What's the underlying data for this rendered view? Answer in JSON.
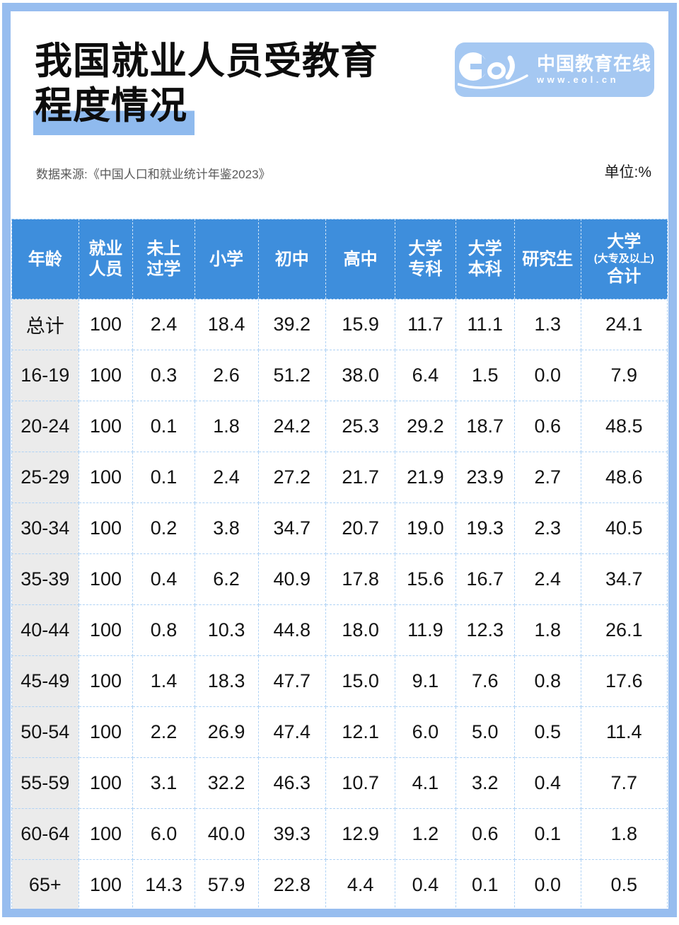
{
  "header": {
    "title_line1": "我国就业人员受教育",
    "title_line2": "程度情况",
    "source": "数据来源:《中国人口和就业统计年鉴2023》",
    "unit": "单位:%"
  },
  "logo": {
    "icon": "eol-logo",
    "name": "中国教育在线",
    "url": "www.eol.cn"
  },
  "colors": {
    "frame_blue": "#97BDEF",
    "logo_panel_blue": "#A5C8F2",
    "title_highlight_blue": "#8FBAEE",
    "table_header_blue": "#3E8EDC",
    "grid_dashed_blue": "#AFD2F5",
    "row_label_gray": "#EBEBEB"
  },
  "table": {
    "columns": [
      {
        "lines": [
          "年龄"
        ]
      },
      {
        "lines": [
          "就业",
          "人员"
        ]
      },
      {
        "lines": [
          "未上",
          "过学"
        ]
      },
      {
        "lines": [
          "小学"
        ]
      },
      {
        "lines": [
          "初中"
        ]
      },
      {
        "lines": [
          "高中"
        ]
      },
      {
        "lines": [
          "大学",
          "专科"
        ]
      },
      {
        "lines": [
          "大学",
          "本科"
        ]
      },
      {
        "lines": [
          "研究生"
        ]
      },
      {
        "lines": [
          "大学",
          "(大专及以上)",
          "合计"
        ]
      }
    ],
    "col_widths_pct": [
      10.2,
      8.3,
      9.4,
      9.7,
      10.3,
      10.6,
      9.2,
      9.0,
      10.1,
      13.2
    ],
    "rows": [
      {
        "label": "总计",
        "values": [
          "100",
          "2.4",
          "18.4",
          "39.2",
          "15.9",
          "11.7",
          "11.1",
          "1.3",
          "24.1"
        ]
      },
      {
        "label": "16-19",
        "values": [
          "100",
          "0.3",
          "2.6",
          "51.2",
          "38.0",
          "6.4",
          "1.5",
          "0.0",
          "7.9"
        ]
      },
      {
        "label": "20-24",
        "values": [
          "100",
          "0.1",
          "1.8",
          "24.2",
          "25.3",
          "29.2",
          "18.7",
          "0.6",
          "48.5"
        ]
      },
      {
        "label": "25-29",
        "values": [
          "100",
          "0.1",
          "2.4",
          "27.2",
          "21.7",
          "21.9",
          "23.9",
          "2.7",
          "48.6"
        ]
      },
      {
        "label": "30-34",
        "values": [
          "100",
          "0.2",
          "3.8",
          "34.7",
          "20.7",
          "19.0",
          "19.3",
          "2.3",
          "40.5"
        ]
      },
      {
        "label": "35-39",
        "values": [
          "100",
          "0.4",
          "6.2",
          "40.9",
          "17.8",
          "15.6",
          "16.7",
          "2.4",
          "34.7"
        ]
      },
      {
        "label": "40-44",
        "values": [
          "100",
          "0.8",
          "10.3",
          "44.8",
          "18.0",
          "11.9",
          "12.3",
          "1.8",
          "26.1"
        ]
      },
      {
        "label": "45-49",
        "values": [
          "100",
          "1.4",
          "18.3",
          "47.7",
          "15.0",
          "9.1",
          "7.6",
          "0.8",
          "17.6"
        ]
      },
      {
        "label": "50-54",
        "values": [
          "100",
          "2.2",
          "26.9",
          "47.4",
          "12.1",
          "6.0",
          "5.0",
          "0.5",
          "11.4"
        ]
      },
      {
        "label": "55-59",
        "values": [
          "100",
          "3.1",
          "32.2",
          "46.3",
          "10.7",
          "4.1",
          "3.2",
          "0.4",
          "7.7"
        ]
      },
      {
        "label": "60-64",
        "values": [
          "100",
          "6.0",
          "40.0",
          "39.3",
          "12.9",
          "1.2",
          "0.6",
          "0.1",
          "1.8"
        ]
      },
      {
        "label": "65+",
        "values": [
          "100",
          "14.3",
          "57.9",
          "22.8",
          "4.4",
          "0.4",
          "0.1",
          "0.0",
          "0.5"
        ]
      }
    ]
  },
  "chart_data": {
    "type": "table",
    "title": "我国就业人员受教育程度情况",
    "unit": "%",
    "source": "数据来源:《中国人口和就业统计年鉴2023》",
    "columns": [
      "年龄",
      "就业人员",
      "未上过学",
      "小学",
      "初中",
      "高中",
      "大学专科",
      "大学本科",
      "研究生",
      "大学(大专及以上)合计"
    ],
    "rows": [
      [
        "总计",
        100,
        2.4,
        18.4,
        39.2,
        15.9,
        11.7,
        11.1,
        1.3,
        24.1
      ],
      [
        "16-19",
        100,
        0.3,
        2.6,
        51.2,
        38.0,
        6.4,
        1.5,
        0.0,
        7.9
      ],
      [
        "20-24",
        100,
        0.1,
        1.8,
        24.2,
        25.3,
        29.2,
        18.7,
        0.6,
        48.5
      ],
      [
        "25-29",
        100,
        0.1,
        2.4,
        27.2,
        21.7,
        21.9,
        23.9,
        2.7,
        48.6
      ],
      [
        "30-34",
        100,
        0.2,
        3.8,
        34.7,
        20.7,
        19.0,
        19.3,
        2.3,
        40.5
      ],
      [
        "35-39",
        100,
        0.4,
        6.2,
        40.9,
        17.8,
        15.6,
        16.7,
        2.4,
        34.7
      ],
      [
        "40-44",
        100,
        0.8,
        10.3,
        44.8,
        18.0,
        11.9,
        12.3,
        1.8,
        26.1
      ],
      [
        "45-49",
        100,
        1.4,
        18.3,
        47.7,
        15.0,
        9.1,
        7.6,
        0.8,
        17.6
      ],
      [
        "50-54",
        100,
        2.2,
        26.9,
        47.4,
        12.1,
        6.0,
        5.0,
        0.5,
        11.4
      ],
      [
        "55-59",
        100,
        3.1,
        32.2,
        46.3,
        10.7,
        4.1,
        3.2,
        0.4,
        7.7
      ],
      [
        "60-64",
        100,
        6.0,
        40.0,
        39.3,
        12.9,
        1.2,
        0.6,
        0.1,
        1.8
      ],
      [
        "65+",
        100,
        14.3,
        57.9,
        22.8,
        4.4,
        0.4,
        0.1,
        0.0,
        0.5
      ]
    ]
  }
}
